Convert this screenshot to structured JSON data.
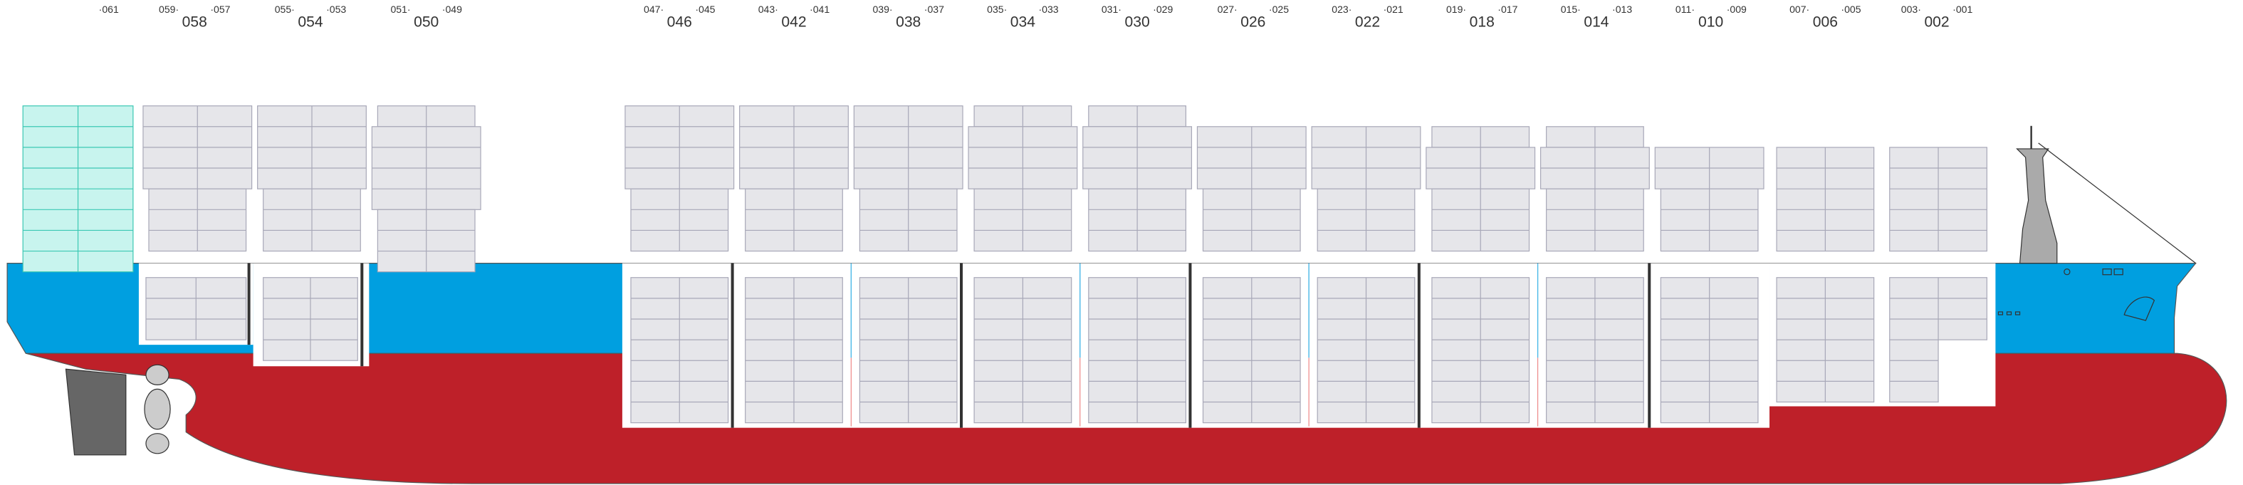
{
  "bays": [
    {
      "aft": "·061"
    },
    {
      "fwd": "059·",
      "aft": "·057",
      "label": "058"
    },
    {
      "fwd": "055·",
      "aft": "·053",
      "label": "054"
    },
    {
      "fwd": "051·",
      "aft": "·049",
      "label": "050"
    },
    {
      "fwd": "047·",
      "aft": "·045",
      "label": "046"
    },
    {
      "fwd": "043·",
      "aft": "·041",
      "label": "042"
    },
    {
      "fwd": "039·",
      "aft": "·037",
      "label": "038"
    },
    {
      "fwd": "035·",
      "aft": "·033",
      "label": "034"
    },
    {
      "fwd": "031·",
      "aft": "·029",
      "label": "030"
    },
    {
      "fwd": "027·",
      "aft": "·025",
      "label": "026"
    },
    {
      "fwd": "023·",
      "aft": "·021",
      "label": "022"
    },
    {
      "fwd": "019·",
      "aft": "·017",
      "label": "018"
    },
    {
      "fwd": "015·",
      "aft": "·013",
      "label": "014"
    },
    {
      "fwd": "011·",
      "aft": "·009",
      "label": "010"
    },
    {
      "fwd": "007·",
      "aft": "·005",
      "label": "006"
    },
    {
      "fwd": "003·",
      "aft": "·001",
      "label": "002"
    }
  ]
}
